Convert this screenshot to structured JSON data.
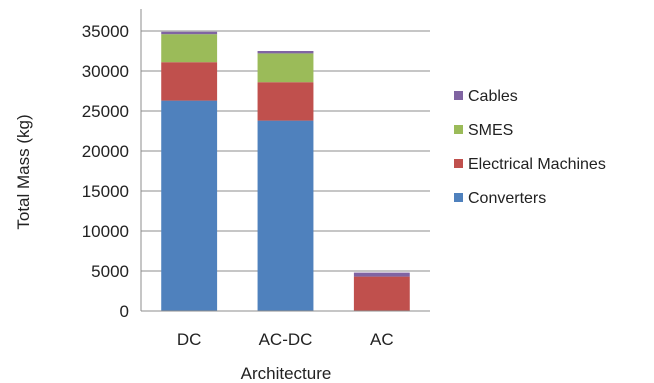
{
  "chart_data": {
    "type": "bar",
    "stacked": true,
    "categories": [
      "DC",
      "AC-DC",
      "AC"
    ],
    "series": [
      {
        "name": "Converters",
        "color": "#4F81BD",
        "values": [
          26300,
          23800,
          0
        ]
      },
      {
        "name": "Electrical Machines",
        "color": "#C0504D",
        "values": [
          4800,
          4800,
          4300
        ]
      },
      {
        "name": "SMES",
        "color": "#9BBB59",
        "values": [
          3500,
          3600,
          0
        ]
      },
      {
        "name": "Cables",
        "color": "#8064A2",
        "values": [
          300,
          300,
          500
        ]
      }
    ],
    "title": "",
    "xlabel": "Architecture",
    "ylabel": "Total Mass (kg)",
    "ylim": [
      0,
      35000
    ],
    "yticks": [
      0,
      5000,
      10000,
      15000,
      20000,
      25000,
      30000,
      35000
    ],
    "grid": true,
    "legend_position": "right",
    "legend_order": [
      "Cables",
      "SMES",
      "Electrical Machines",
      "Converters"
    ]
  }
}
